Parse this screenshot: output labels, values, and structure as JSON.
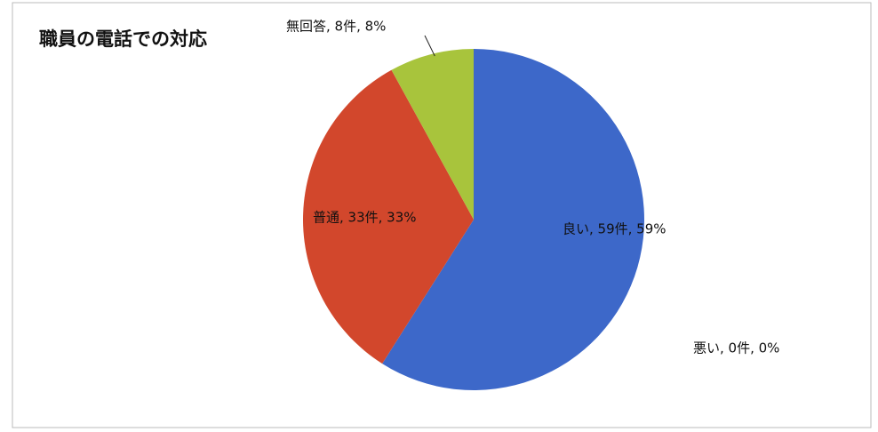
{
  "chart_data": {
    "type": "pie",
    "title": "職員の電話での対応",
    "values": [
      59,
      0,
      33,
      8
    ],
    "value_labels": [
      "良い, 59件, 59%",
      "悪い, 0件, 0%",
      "普通, 33件, 33%",
      "無回答, 8件, 8%"
    ],
    "colors": [
      "#3d68c9",
      "#8f3b2b",
      "#d2472c",
      "#a8c43c"
    ]
  }
}
